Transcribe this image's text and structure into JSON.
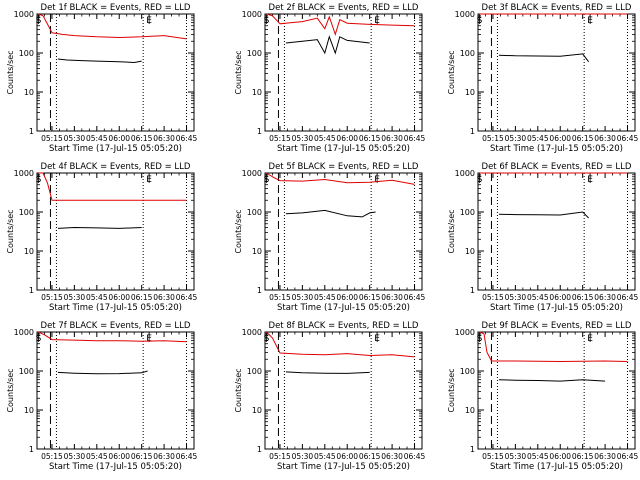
{
  "figure": {
    "xlabel": "Start Time (17-Jul-15 05:05:20)",
    "ylabel": "Counts/sec",
    "x_tick_labels": [
      "05:15",
      "05:30",
      "05:45",
      "06:00",
      "06:15",
      "06:30",
      "06:45"
    ],
    "y_tick_labels": [
      "1",
      "10",
      "100",
      "1000"
    ],
    "marker_s": "S",
    "marker_e": "E"
  },
  "colors": {
    "events": "#000000",
    "lld": "#e00000",
    "axis": "#000000"
  },
  "chart_data": [
    {
      "type": "line",
      "title": "Det 1f BLACK = Events, RED = LLD",
      "xlim": [
        "05:05",
        "06:50"
      ],
      "ylim": [
        1,
        1000
      ],
      "yscale": "log",
      "xlabel": "Start Time (17-Jul-15 05:05:20)",
      "ylabel": "Counts/sec",
      "markers": {
        "S": "05:06",
        "E": "06:20"
      },
      "vlines": {
        "dashed": "05:14",
        "dotted": [
          "05:18",
          "06:16",
          "06:45"
        ]
      },
      "series": [
        {
          "name": "LLD",
          "color": "#e00000",
          "x": [
            "05:06",
            "05:09",
            "05:12",
            "05:15",
            "05:22",
            "05:30",
            "05:45",
            "06:00",
            "06:15",
            "06:30",
            "06:45"
          ],
          "y": [
            1000,
            900,
            550,
            330,
            300,
            280,
            260,
            250,
            260,
            280,
            230
          ]
        },
        {
          "name": "Events",
          "color": "#000000",
          "x": [
            "05:19",
            "05:25",
            "05:35",
            "05:45",
            "06:00",
            "06:10",
            "06:15"
          ],
          "y": [
            70,
            66,
            64,
            62,
            60,
            57,
            62
          ]
        }
      ]
    },
    {
      "type": "line",
      "title": "Det 2f BLACK = Events, RED = LLD",
      "xlim": [
        "05:05",
        "06:50"
      ],
      "ylim": [
        1,
        1000
      ],
      "yscale": "log",
      "xlabel": "Start Time (17-Jul-15 05:05:20)",
      "ylabel": "Counts/sec",
      "markers": {
        "S": "05:06",
        "E": "06:20"
      },
      "vlines": {
        "dashed": "05:14",
        "dotted": [
          "05:18",
          "06:16",
          "06:45"
        ]
      },
      "series": [
        {
          "name": "LLD",
          "color": "#e00000",
          "x": [
            "05:06",
            "05:10",
            "05:15",
            "05:22",
            "05:30",
            "05:40",
            "05:45",
            "05:48",
            "05:52",
            "05:55",
            "06:00",
            "06:15",
            "06:30",
            "06:45"
          ],
          "y": [
            1000,
            900,
            560,
            600,
            640,
            780,
            420,
            850,
            300,
            720,
            580,
            540,
            520,
            500
          ]
        },
        {
          "name": "Events",
          "color": "#000000",
          "x": [
            "05:19",
            "05:30",
            "05:40",
            "05:45",
            "05:48",
            "05:52",
            "05:55",
            "06:00",
            "06:15"
          ],
          "y": [
            180,
            200,
            220,
            100,
            260,
            100,
            260,
            210,
            180
          ]
        }
      ]
    },
    {
      "type": "line",
      "title": "Det 3f BLACK = Events, RED = LLD",
      "xlim": [
        "05:05",
        "06:50"
      ],
      "ylim": [
        1,
        1000
      ],
      "yscale": "log",
      "xlabel": "Start Time (17-Jul-15 05:05:20)",
      "ylabel": "Counts/sec",
      "markers": {
        "S": "05:06",
        "E": "06:20"
      },
      "vlines": {
        "dashed": "05:14",
        "dotted": [
          "05:18",
          "06:16",
          "06:45"
        ]
      },
      "series": [
        {
          "name": "LLD",
          "color": "#e00000",
          "x": [
            "05:06",
            "05:30",
            "06:00",
            "06:30",
            "06:45"
          ],
          "y": [
            1000,
            1000,
            1000,
            1000,
            1000
          ]
        },
        {
          "name": "Events",
          "color": "#000000",
          "x": [
            "05:19",
            "05:30",
            "05:45",
            "06:00",
            "06:15",
            "06:19"
          ],
          "y": [
            88,
            85,
            84,
            83,
            95,
            60
          ]
        }
      ]
    },
    {
      "type": "line",
      "title": "Det 4f BLACK = Events, RED = LLD",
      "xlim": [
        "05:05",
        "06:50"
      ],
      "ylim": [
        1,
        1000
      ],
      "yscale": "log",
      "xlabel": "Start Time (17-Jul-15 05:05:20)",
      "ylabel": "Counts/sec",
      "markers": {
        "S": "05:06",
        "E": "06:20"
      },
      "vlines": {
        "dashed": "05:14",
        "dotted": [
          "05:18",
          "06:16",
          "06:45"
        ]
      },
      "series": [
        {
          "name": "LLD",
          "color": "#e00000",
          "x": [
            "05:06",
            "05:09",
            "05:12",
            "05:15",
            "05:30",
            "06:00",
            "06:30",
            "06:45"
          ],
          "y": [
            1000,
            1000,
            550,
            200,
            200,
            200,
            200,
            200
          ]
        },
        {
          "name": "Events",
          "color": "#000000",
          "x": [
            "05:19",
            "05:30",
            "05:45",
            "06:00",
            "06:15"
          ],
          "y": [
            38,
            40,
            39,
            38,
            40
          ]
        }
      ]
    },
    {
      "type": "line",
      "title": "Det 5f BLACK = Events, RED = LLD",
      "xlim": [
        "05:05",
        "06:50"
      ],
      "ylim": [
        1,
        1000
      ],
      "yscale": "log",
      "xlabel": "Start Time (17-Jul-15 05:05:20)",
      "ylabel": "Counts/sec",
      "markers": {
        "S": "05:06",
        "E": "06:20"
      },
      "vlines": {
        "dashed": "05:14",
        "dotted": [
          "05:18",
          "06:16",
          "06:45"
        ]
      },
      "series": [
        {
          "name": "LLD",
          "color": "#e00000",
          "x": [
            "05:06",
            "05:10",
            "05:15",
            "05:30",
            "05:45",
            "06:00",
            "06:15",
            "06:30",
            "06:45"
          ],
          "y": [
            1000,
            800,
            640,
            620,
            680,
            560,
            580,
            650,
            510
          ]
        },
        {
          "name": "Events",
          "color": "#000000",
          "x": [
            "05:19",
            "05:30",
            "05:45",
            "06:00",
            "06:10",
            "06:15",
            "06:19"
          ],
          "y": [
            90,
            95,
            110,
            80,
            75,
            95,
            100
          ]
        }
      ]
    },
    {
      "type": "line",
      "title": "Det 6f BLACK = Events, RED = LLD",
      "xlim": [
        "05:05",
        "06:50"
      ],
      "ylim": [
        1,
        1000
      ],
      "yscale": "log",
      "xlabel": "Start Time (17-Jul-15 05:05:20)",
      "ylabel": "Counts/sec",
      "markers": {
        "S": "05:06",
        "E": "06:20"
      },
      "vlines": {
        "dashed": "05:14",
        "dotted": [
          "05:18",
          "06:16",
          "06:45"
        ]
      },
      "series": [
        {
          "name": "LLD",
          "color": "#e00000",
          "x": [
            "05:06",
            "05:30",
            "06:00",
            "06:30",
            "06:45"
          ],
          "y": [
            1000,
            1000,
            1000,
            1000,
            1000
          ]
        },
        {
          "name": "Events",
          "color": "#000000",
          "x": [
            "05:19",
            "05:30",
            "05:45",
            "06:00",
            "06:15",
            "06:19"
          ],
          "y": [
            88,
            86,
            85,
            84,
            100,
            70
          ]
        }
      ]
    },
    {
      "type": "line",
      "title": "Det 7f BLACK = Events, RED = LLD",
      "xlim": [
        "05:05",
        "06:50"
      ],
      "ylim": [
        1,
        1000
      ],
      "yscale": "log",
      "xlabel": "Start Time (17-Jul-15 05:05:20)",
      "ylabel": "Counts/sec",
      "markers": {
        "S": "05:06",
        "E": "06:20"
      },
      "vlines": {
        "dashed": "05:14",
        "dotted": [
          "05:18",
          "06:16",
          "06:45"
        ]
      },
      "series": [
        {
          "name": "LLD",
          "color": "#e00000",
          "x": [
            "05:06",
            "05:10",
            "05:15",
            "05:30",
            "05:45",
            "06:00",
            "06:15",
            "06:30",
            "06:45"
          ],
          "y": [
            1000,
            850,
            640,
            620,
            600,
            600,
            580,
            600,
            560
          ]
        },
        {
          "name": "Events",
          "color": "#000000",
          "x": [
            "05:19",
            "05:30",
            "05:45",
            "06:00",
            "06:15",
            "06:19"
          ],
          "y": [
            92,
            88,
            85,
            86,
            90,
            100
          ]
        }
      ]
    },
    {
      "type": "line",
      "title": "Det 8f BLACK = Events, RED = LLD",
      "xlim": [
        "05:05",
        "06:50"
      ],
      "ylim": [
        1,
        1000
      ],
      "yscale": "log",
      "xlabel": "Start Time (17-Jul-15 05:05:20)",
      "ylabel": "Counts/sec",
      "markers": {
        "S": "05:06",
        "E": "06:20"
      },
      "vlines": {
        "dashed": "05:14",
        "dotted": [
          "05:18",
          "06:16",
          "06:45"
        ]
      },
      "series": [
        {
          "name": "LLD",
          "color": "#e00000",
          "x": [
            "05:06",
            "05:10",
            "05:15",
            "05:30",
            "05:45",
            "06:00",
            "06:15",
            "06:30",
            "06:45"
          ],
          "y": [
            1000,
            700,
            290,
            270,
            260,
            280,
            250,
            260,
            230
          ]
        },
        {
          "name": "Events",
          "color": "#000000",
          "x": [
            "05:19",
            "05:30",
            "05:45",
            "06:00",
            "06:15"
          ],
          "y": [
            95,
            90,
            88,
            87,
            92
          ]
        }
      ]
    },
    {
      "type": "line",
      "title": "Det 9f BLACK = Events, RED = LLD",
      "xlim": [
        "05:05",
        "06:50"
      ],
      "ylim": [
        1,
        1000
      ],
      "yscale": "log",
      "xlabel": "Start Time (17-Jul-15 05:05:20)",
      "ylabel": "Counts/sec",
      "markers": {
        "S": "05:06",
        "E": "06:20"
      },
      "vlines": {
        "dashed": "05:14",
        "dotted": [
          "05:18",
          "06:16",
          "06:45"
        ]
      },
      "series": [
        {
          "name": "LLD",
          "color": "#e00000",
          "x": [
            "05:06",
            "05:09",
            "05:11",
            "05:14",
            "05:30",
            "06:00",
            "06:30",
            "06:45"
          ],
          "y": [
            1000,
            900,
            300,
            180,
            180,
            175,
            180,
            175
          ]
        },
        {
          "name": "Events",
          "color": "#000000",
          "x": [
            "05:19",
            "05:30",
            "05:45",
            "06:00",
            "06:15",
            "06:30"
          ],
          "y": [
            60,
            58,
            57,
            55,
            60,
            55
          ]
        }
      ]
    }
  ]
}
